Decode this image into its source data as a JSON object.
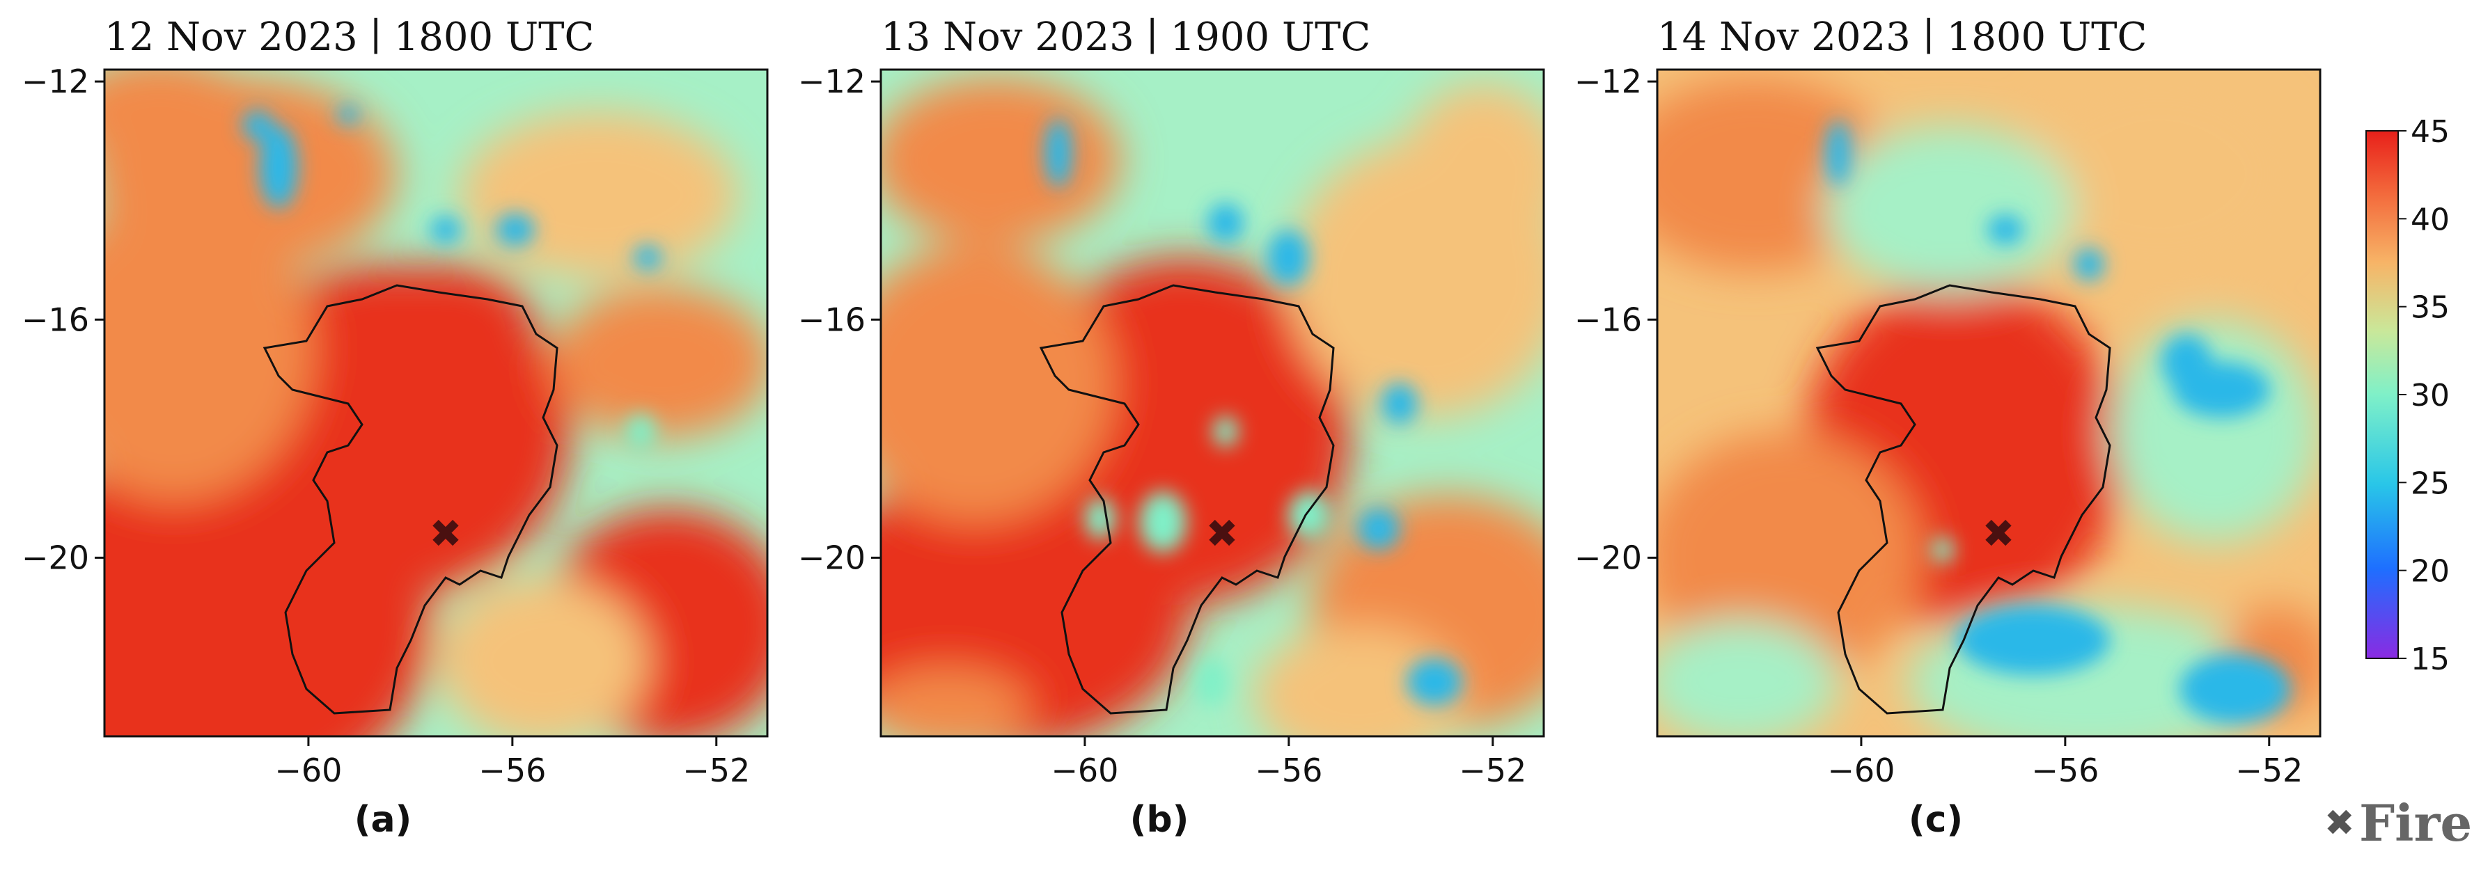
{
  "chart_data": [
    {
      "type": "heatmap",
      "panel": "(a)",
      "title_date": "12 Nov 2023",
      "title_time": "1800 UTC",
      "xlim": [
        -64,
        -51
      ],
      "ylim": [
        -23,
        -11.8
      ],
      "xticks": [
        -60,
        -56,
        -52
      ],
      "yticks": [
        -12,
        -16,
        -20
      ],
      "fire_marker": {
        "lon": -57,
        "lat": -19.6
      }
    },
    {
      "type": "heatmap",
      "panel": "(b)",
      "title_date": "13 Nov 2023",
      "title_time": "1900 UTC",
      "xlim": [
        -64,
        -51
      ],
      "ylim": [
        -23,
        -11.8
      ],
      "xticks": [
        -60,
        -56,
        -52
      ],
      "yticks": [
        -12,
        -16,
        -20
      ],
      "fire_marker": {
        "lon": -57,
        "lat": -19.6
      }
    },
    {
      "type": "heatmap",
      "panel": "(c)",
      "title_date": "14 Nov 2023",
      "title_time": "1800 UTC",
      "xlim": [
        -64,
        -51
      ],
      "ylim": [
        -23,
        -11.8
      ],
      "xticks": [
        -60,
        -56,
        -52
      ],
      "yticks": [
        -12,
        -16,
        -20
      ],
      "fire_marker": {
        "lon": -57,
        "lat": -19.6
      }
    }
  ],
  "colorbar": {
    "min": 15,
    "max": 45,
    "ticks": [
      45,
      40,
      35,
      30,
      25,
      20,
      15
    ],
    "colors": [
      "#8a2be2",
      "#1e6fff",
      "#29c6e8",
      "#7ff0c8",
      "#c9e89a",
      "#f7b467",
      "#f36a3c",
      "#e8201a"
    ]
  },
  "legend": {
    "symbol": "✖",
    "label": "Fire"
  },
  "colors": {
    "hot": "#e8331f",
    "warm": "#f28a4a",
    "mild": "#f5c27a",
    "cool": "#a6f0c6",
    "cold": "#2bb8e8",
    "coldest": "#1a5fe0"
  }
}
